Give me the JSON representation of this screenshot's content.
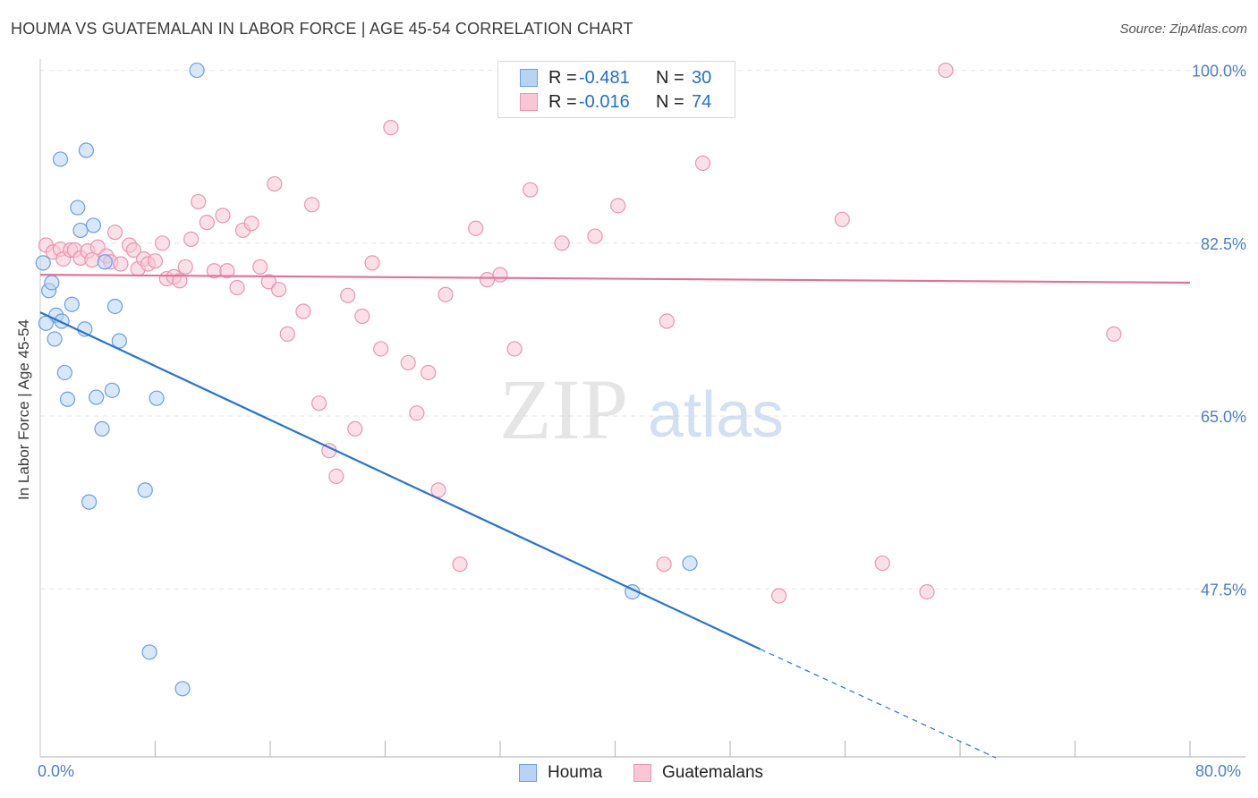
{
  "title": "HOUMA VS GUATEMALAN IN LABOR FORCE | AGE 45-54 CORRELATION CHART",
  "source": "Source: ZipAtlas.com",
  "watermark": {
    "zip": "ZIP",
    "atlas": "atlas"
  },
  "legend": {
    "r_label": "R =",
    "n_label": "N =",
    "houma": {
      "r": "-0.481",
      "n": "30"
    },
    "guatemalans": {
      "r": "-0.016",
      "n": "74"
    }
  },
  "bottom_legend": {
    "houma": "Houma",
    "guatemalans": "Guatemalans"
  },
  "x_axis": {
    "min_label": "0.0%",
    "max_label": "80.0%"
  },
  "colors": {
    "houma_fill": "#b8d3f5",
    "houma_stroke": "#6a9fe0",
    "houma_line": "#2673d3",
    "guat_fill": "#f9c6d6",
    "guat_stroke": "#e895b3",
    "guat_line": "#e4709a",
    "tick_text": "#4a7fc8",
    "grid": "#e6e6e6"
  },
  "chart_data": {
    "type": "scatter",
    "title": "HOUMA VS GUATEMALAN IN LABOR FORCE | AGE 45-54 CORRELATION CHART",
    "xlabel": "",
    "ylabel": "In Labor Force | Age 45-54",
    "xlim": [
      0,
      80
    ],
    "ylim": [
      30.5,
      101.5
    ],
    "y_ticks": [
      47.5,
      65.0,
      82.5,
      100.0
    ],
    "y_tick_labels": [
      "47.5%",
      "65.0%",
      "82.5%",
      "100.0%"
    ],
    "x_tick_labels": [
      "0.0%",
      "80.0%"
    ],
    "grid": true,
    "legend_position": "top-center",
    "series": [
      {
        "name": "Houma",
        "r": -0.481,
        "n": 30,
        "x": [
          0.2,
          0.6,
          0.8,
          1.0,
          1.1,
          1.4,
          1.5,
          1.7,
          1.9,
          2.2,
          2.6,
          2.8,
          3.1,
          3.2,
          3.4,
          3.7,
          3.9,
          4.3,
          4.5,
          5.0,
          5.2,
          5.5,
          7.3,
          7.6,
          8.1,
          9.9,
          10.9,
          41.2,
          45.2,
          0.4
        ],
        "y": [
          80.5,
          77.7,
          78.5,
          72.8,
          75.2,
          91.0,
          74.6,
          69.4,
          66.7,
          76.3,
          86.1,
          83.8,
          73.8,
          91.9,
          56.3,
          84.3,
          66.9,
          63.7,
          80.6,
          67.6,
          76.1,
          72.6,
          57.5,
          41.1,
          66.8,
          37.4,
          100.0,
          47.2,
          50.1,
          74.4
        ]
      },
      {
        "name": "Guatemalans",
        "r": -0.016,
        "n": 74,
        "x": [
          0.4,
          0.9,
          1.4,
          1.6,
          2.1,
          2.4,
          2.8,
          3.3,
          3.6,
          4.0,
          4.6,
          4.9,
          5.2,
          5.6,
          6.2,
          6.5,
          6.8,
          7.2,
          7.5,
          8.0,
          8.5,
          8.8,
          9.3,
          9.7,
          10.1,
          10.5,
          11.0,
          11.6,
          12.1,
          12.7,
          13.0,
          13.7,
          14.1,
          14.7,
          15.3,
          15.9,
          16.3,
          16.6,
          17.2,
          18.3,
          18.9,
          19.4,
          20.1,
          20.6,
          21.4,
          21.9,
          22.4,
          23.1,
          23.7,
          24.4,
          25.6,
          26.2,
          27.0,
          27.7,
          28.2,
          29.2,
          30.3,
          31.1,
          32.0,
          33.0,
          34.1,
          35.2,
          36.3,
          38.6,
          40.2,
          43.4,
          43.6,
          46.1,
          51.4,
          55.8,
          58.6,
          61.7,
          63.0,
          74.7
        ],
        "y": [
          82.3,
          81.6,
          81.9,
          80.9,
          81.8,
          81.8,
          81.0,
          81.7,
          80.8,
          82.1,
          81.2,
          80.6,
          83.6,
          80.4,
          82.3,
          81.8,
          79.9,
          80.9,
          80.4,
          80.7,
          82.5,
          78.9,
          79.1,
          78.7,
          80.1,
          82.9,
          86.7,
          84.6,
          79.7,
          85.3,
          79.7,
          78.0,
          83.8,
          84.5,
          80.1,
          78.6,
          88.5,
          77.8,
          73.3,
          75.6,
          86.4,
          66.3,
          61.5,
          58.9,
          77.2,
          63.7,
          75.1,
          80.5,
          71.8,
          94.2,
          70.4,
          65.3,
          69.4,
          57.5,
          77.3,
          50.0,
          84.0,
          78.8,
          79.3,
          71.8,
          87.9,
          100.0,
          82.5,
          83.2,
          86.3,
          50.0,
          74.6,
          90.6,
          46.8,
          84.9,
          50.1,
          47.2,
          100.0,
          73.3
        ]
      }
    ],
    "trend_lines": [
      {
        "name": "Houma",
        "x_start": 0.0,
        "y_start": 75.5,
        "x_solid_end": 50.1,
        "y_solid_end": 41.4,
        "x_dash_end": 66.5,
        "y_dash_end": 30.4
      },
      {
        "name": "Guatemalans",
        "x_start": 0.0,
        "y_start": 79.3,
        "x_end": 80.0,
        "y_end": 78.5
      }
    ]
  }
}
